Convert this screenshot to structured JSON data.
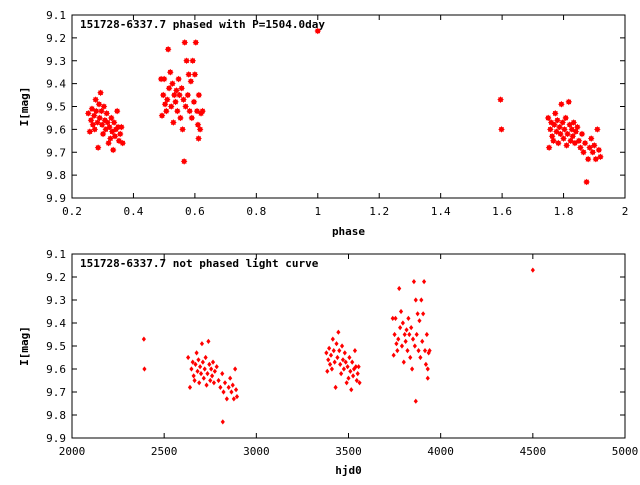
{
  "chart_data": [
    {
      "type": "scatter",
      "title": "151728-6337.7 phased with P=1504.0day",
      "xlabel": "phase",
      "ylabel": "I[mag]",
      "xlim": [
        0.2,
        2.0
      ],
      "ylim": [
        9.1,
        9.9
      ],
      "y_inverted": true,
      "x_ticks": [
        0.2,
        0.4,
        0.6,
        0.8,
        1.0,
        1.2,
        1.4,
        1.6,
        1.8,
        2.0
      ],
      "x_tick_labels": [
        "0.2",
        "0.4",
        "0.6",
        "0.8",
        "1",
        "1.2",
        "1.4",
        "1.6",
        "1.8",
        "2"
      ],
      "y_ticks": [
        9.1,
        9.2,
        9.3,
        9.4,
        9.5,
        9.6,
        9.7,
        9.8,
        9.9
      ],
      "y_tick_labels": [
        "9.1",
        "9.2",
        "9.3",
        "9.4",
        "9.5",
        "9.6",
        "9.7",
        "9.8",
        "9.9"
      ],
      "marker": "filled-star",
      "color": "#ff0000",
      "grid": false,
      "series": [
        {
          "points": [
            [
              0.253,
              9.53
            ],
            [
              0.258,
              9.61
            ],
            [
              0.262,
              9.56
            ],
            [
              0.265,
              9.51
            ],
            [
              0.268,
              9.58
            ],
            [
              0.272,
              9.54
            ],
            [
              0.274,
              9.6
            ],
            [
              0.277,
              9.47
            ],
            [
              0.279,
              9.52
            ],
            [
              0.283,
              9.57
            ],
            [
              0.285,
              9.68
            ],
            [
              0.288,
              9.49
            ],
            [
              0.29,
              9.55
            ],
            [
              0.293,
              9.44
            ],
            [
              0.296,
              9.52
            ],
            [
              0.298,
              9.58
            ],
            [
              0.301,
              9.62
            ],
            [
              0.304,
              9.5
            ],
            [
              0.307,
              9.56
            ],
            [
              0.31,
              9.6
            ],
            [
              0.313,
              9.53
            ],
            [
              0.316,
              9.57
            ],
            [
              0.319,
              9.66
            ],
            [
              0.322,
              9.59
            ],
            [
              0.325,
              9.64
            ],
            [
              0.328,
              9.55
            ],
            [
              0.331,
              9.61
            ],
            [
              0.334,
              9.69
            ],
            [
              0.337,
              9.57
            ],
            [
              0.34,
              9.63
            ],
            [
              0.343,
              9.6
            ],
            [
              0.347,
              9.52
            ],
            [
              0.35,
              9.59
            ],
            [
              0.353,
              9.65
            ],
            [
              0.357,
              9.62
            ],
            [
              0.361,
              9.59
            ],
            [
              0.365,
              9.66
            ],
            [
              0.49,
              9.38
            ],
            [
              0.493,
              9.54
            ],
            [
              0.497,
              9.45
            ],
            [
              0.5,
              9.38
            ],
            [
              0.503,
              9.49
            ],
            [
              0.507,
              9.52
            ],
            [
              0.51,
              9.47
            ],
            [
              0.513,
              9.25
            ],
            [
              0.516,
              9.42
            ],
            [
              0.52,
              9.35
            ],
            [
              0.523,
              9.5
            ],
            [
              0.527,
              9.4
            ],
            [
              0.53,
              9.57
            ],
            [
              0.533,
              9.45
            ],
            [
              0.537,
              9.48
            ],
            [
              0.54,
              9.43
            ],
            [
              0.543,
              9.52
            ],
            [
              0.547,
              9.38
            ],
            [
              0.55,
              9.45
            ],
            [
              0.553,
              9.55
            ],
            [
              0.557,
              9.42
            ],
            [
              0.56,
              9.6
            ],
            [
              0.563,
              9.47
            ],
            [
              0.567,
              9.22
            ],
            [
              0.57,
              9.5
            ],
            [
              0.573,
              9.3
            ],
            [
              0.577,
              9.45
            ],
            [
              0.58,
              9.36
            ],
            [
              0.583,
              9.52
            ],
            [
              0.587,
              9.39
            ],
            [
              0.59,
              9.55
            ],
            [
              0.593,
              9.3
            ],
            [
              0.597,
              9.48
            ],
            [
              0.6,
              9.36
            ],
            [
              0.603,
              9.22
            ],
            [
              0.607,
              9.52
            ],
            [
              0.61,
              9.58
            ],
            [
              0.613,
              9.45
            ],
            [
              0.617,
              9.6
            ],
            [
              0.62,
              9.53
            ],
            [
              0.625,
              9.52
            ],
            [
              0.565,
              9.74
            ],
            [
              0.612,
              9.64
            ],
            [
              1.0,
              9.17
            ],
            [
              1.595,
              9.47
            ],
            [
              1.598,
              9.6
            ],
            [
              1.75,
              9.55
            ],
            [
              1.753,
              9.68
            ],
            [
              1.757,
              9.6
            ],
            [
              1.76,
              9.57
            ],
            [
              1.763,
              9.63
            ],
            [
              1.767,
              9.65
            ],
            [
              1.77,
              9.58
            ],
            [
              1.773,
              9.53
            ],
            [
              1.777,
              9.61
            ],
            [
              1.78,
              9.56
            ],
            [
              1.783,
              9.66
            ],
            [
              1.787,
              9.59
            ],
            [
              1.79,
              9.62
            ],
            [
              1.793,
              9.49
            ],
            [
              1.797,
              9.57
            ],
            [
              1.8,
              9.64
            ],
            [
              1.803,
              9.6
            ],
            [
              1.807,
              9.55
            ],
            [
              1.81,
              9.67
            ],
            [
              1.813,
              9.62
            ],
            [
              1.817,
              9.48
            ],
            [
              1.82,
              9.58
            ],
            [
              1.823,
              9.65
            ],
            [
              1.827,
              9.6
            ],
            [
              1.83,
              9.63
            ],
            [
              1.833,
              9.57
            ],
            [
              1.837,
              9.66
            ],
            [
              1.84,
              9.61
            ],
            [
              1.845,
              9.59
            ],
            [
              1.85,
              9.65
            ],
            [
              1.855,
              9.68
            ],
            [
              1.86,
              9.62
            ],
            [
              1.865,
              9.7
            ],
            [
              1.87,
              9.66
            ],
            [
              1.875,
              9.83
            ],
            [
              1.88,
              9.73
            ],
            [
              1.885,
              9.68
            ],
            [
              1.89,
              9.64
            ],
            [
              1.895,
              9.7
            ],
            [
              1.9,
              9.67
            ],
            [
              1.905,
              9.73
            ],
            [
              1.91,
              9.6
            ],
            [
              1.915,
              9.69
            ],
            [
              1.92,
              9.72
            ]
          ]
        }
      ]
    },
    {
      "type": "scatter",
      "title": "151728-6337.7 not phased light curve",
      "xlabel": "hjd0",
      "ylabel": "I[mag]",
      "xlim": [
        2000,
        5000
      ],
      "ylim": [
        9.1,
        9.9
      ],
      "y_inverted": true,
      "x_ticks": [
        2000,
        2500,
        3000,
        3500,
        4000,
        4500,
        5000
      ],
      "x_tick_labels": [
        "2000",
        "2500",
        "3000",
        "3500",
        "4000",
        "4500",
        "5000"
      ],
      "y_ticks": [
        9.1,
        9.2,
        9.3,
        9.4,
        9.5,
        9.6,
        9.7,
        9.8,
        9.9
      ],
      "y_tick_labels": [
        "9.1",
        "9.2",
        "9.3",
        "9.4",
        "9.5",
        "9.6",
        "9.7",
        "9.8",
        "9.9"
      ],
      "marker": "diamond",
      "color": "#ff0000",
      "grid": false,
      "series": [
        {
          "points": [
            [
              2390,
              9.47
            ],
            [
              2393,
              9.6
            ],
            [
              2630,
              9.55
            ],
            [
              2640,
              9.68
            ],
            [
              2648,
              9.6
            ],
            [
              2655,
              9.57
            ],
            [
              2660,
              9.63
            ],
            [
              2665,
              9.65
            ],
            [
              2670,
              9.58
            ],
            [
              2676,
              9.53
            ],
            [
              2681,
              9.61
            ],
            [
              2686,
              9.56
            ],
            [
              2690,
              9.66
            ],
            [
              2695,
              9.59
            ],
            [
              2700,
              9.62
            ],
            [
              2705,
              9.49
            ],
            [
              2710,
              9.57
            ],
            [
              2715,
              9.64
            ],
            [
              2720,
              9.6
            ],
            [
              2725,
              9.55
            ],
            [
              2730,
              9.67
            ],
            [
              2735,
              9.62
            ],
            [
              2740,
              9.48
            ],
            [
              2745,
              9.58
            ],
            [
              2750,
              9.65
            ],
            [
              2755,
              9.6
            ],
            [
              2760,
              9.63
            ],
            [
              2765,
              9.57
            ],
            [
              2770,
              9.66
            ],
            [
              2775,
              9.61
            ],
            [
              2785,
              9.59
            ],
            [
              2795,
              9.65
            ],
            [
              2805,
              9.68
            ],
            [
              2815,
              9.62
            ],
            [
              2822,
              9.7
            ],
            [
              2830,
              9.66
            ],
            [
              2818,
              9.83
            ],
            [
              2840,
              9.73
            ],
            [
              2850,
              9.68
            ],
            [
              2858,
              9.64
            ],
            [
              2865,
              9.7
            ],
            [
              2872,
              9.67
            ],
            [
              2878,
              9.73
            ],
            [
              2885,
              9.6
            ],
            [
              2890,
              9.69
            ],
            [
              2895,
              9.72
            ],
            [
              3380,
              9.53
            ],
            [
              3385,
              9.61
            ],
            [
              3390,
              9.56
            ],
            [
              3395,
              9.51
            ],
            [
              3400,
              9.58
            ],
            [
              3405,
              9.54
            ],
            [
              3410,
              9.6
            ],
            [
              3415,
              9.47
            ],
            [
              3420,
              9.52
            ],
            [
              3425,
              9.57
            ],
            [
              3430,
              9.68
            ],
            [
              3435,
              9.49
            ],
            [
              3440,
              9.55
            ],
            [
              3445,
              9.44
            ],
            [
              3450,
              9.52
            ],
            [
              3455,
              9.58
            ],
            [
              3460,
              9.62
            ],
            [
              3465,
              9.5
            ],
            [
              3470,
              9.56
            ],
            [
              3475,
              9.6
            ],
            [
              3480,
              9.53
            ],
            [
              3485,
              9.57
            ],
            [
              3490,
              9.66
            ],
            [
              3495,
              9.59
            ],
            [
              3500,
              9.64
            ],
            [
              3505,
              9.55
            ],
            [
              3510,
              9.61
            ],
            [
              3515,
              9.69
            ],
            [
              3520,
              9.57
            ],
            [
              3525,
              9.63
            ],
            [
              3530,
              9.6
            ],
            [
              3535,
              9.52
            ],
            [
              3540,
              9.59
            ],
            [
              3545,
              9.65
            ],
            [
              3550,
              9.62
            ],
            [
              3555,
              9.59
            ],
            [
              3560,
              9.66
            ],
            [
              3740,
              9.38
            ],
            [
              3745,
              9.54
            ],
            [
              3750,
              9.45
            ],
            [
              3755,
              9.38
            ],
            [
              3760,
              9.49
            ],
            [
              3765,
              9.52
            ],
            [
              3770,
              9.47
            ],
            [
              3775,
              9.25
            ],
            [
              3780,
              9.42
            ],
            [
              3785,
              9.35
            ],
            [
              3790,
              9.5
            ],
            [
              3795,
              9.4
            ],
            [
              3800,
              9.57
            ],
            [
              3805,
              9.45
            ],
            [
              3810,
              9.48
            ],
            [
              3815,
              9.43
            ],
            [
              3820,
              9.52
            ],
            [
              3825,
              9.38
            ],
            [
              3830,
              9.45
            ],
            [
              3835,
              9.55
            ],
            [
              3840,
              9.42
            ],
            [
              3845,
              9.6
            ],
            [
              3850,
              9.47
            ],
            [
              3855,
              9.22
            ],
            [
              3860,
              9.5
            ],
            [
              3865,
              9.3
            ],
            [
              3870,
              9.45
            ],
            [
              3875,
              9.36
            ],
            [
              3880,
              9.52
            ],
            [
              3885,
              9.39
            ],
            [
              3890,
              9.55
            ],
            [
              3895,
              9.3
            ],
            [
              3900,
              9.48
            ],
            [
              3905,
              9.36
            ],
            [
              3910,
              9.22
            ],
            [
              3915,
              9.52
            ],
            [
              3920,
              9.58
            ],
            [
              3925,
              9.45
            ],
            [
              3930,
              9.6
            ],
            [
              3935,
              9.53
            ],
            [
              3940,
              9.52
            ],
            [
              3865,
              9.74
            ],
            [
              3930,
              9.64
            ],
            [
              4500,
              9.17
            ]
          ]
        }
      ]
    }
  ]
}
